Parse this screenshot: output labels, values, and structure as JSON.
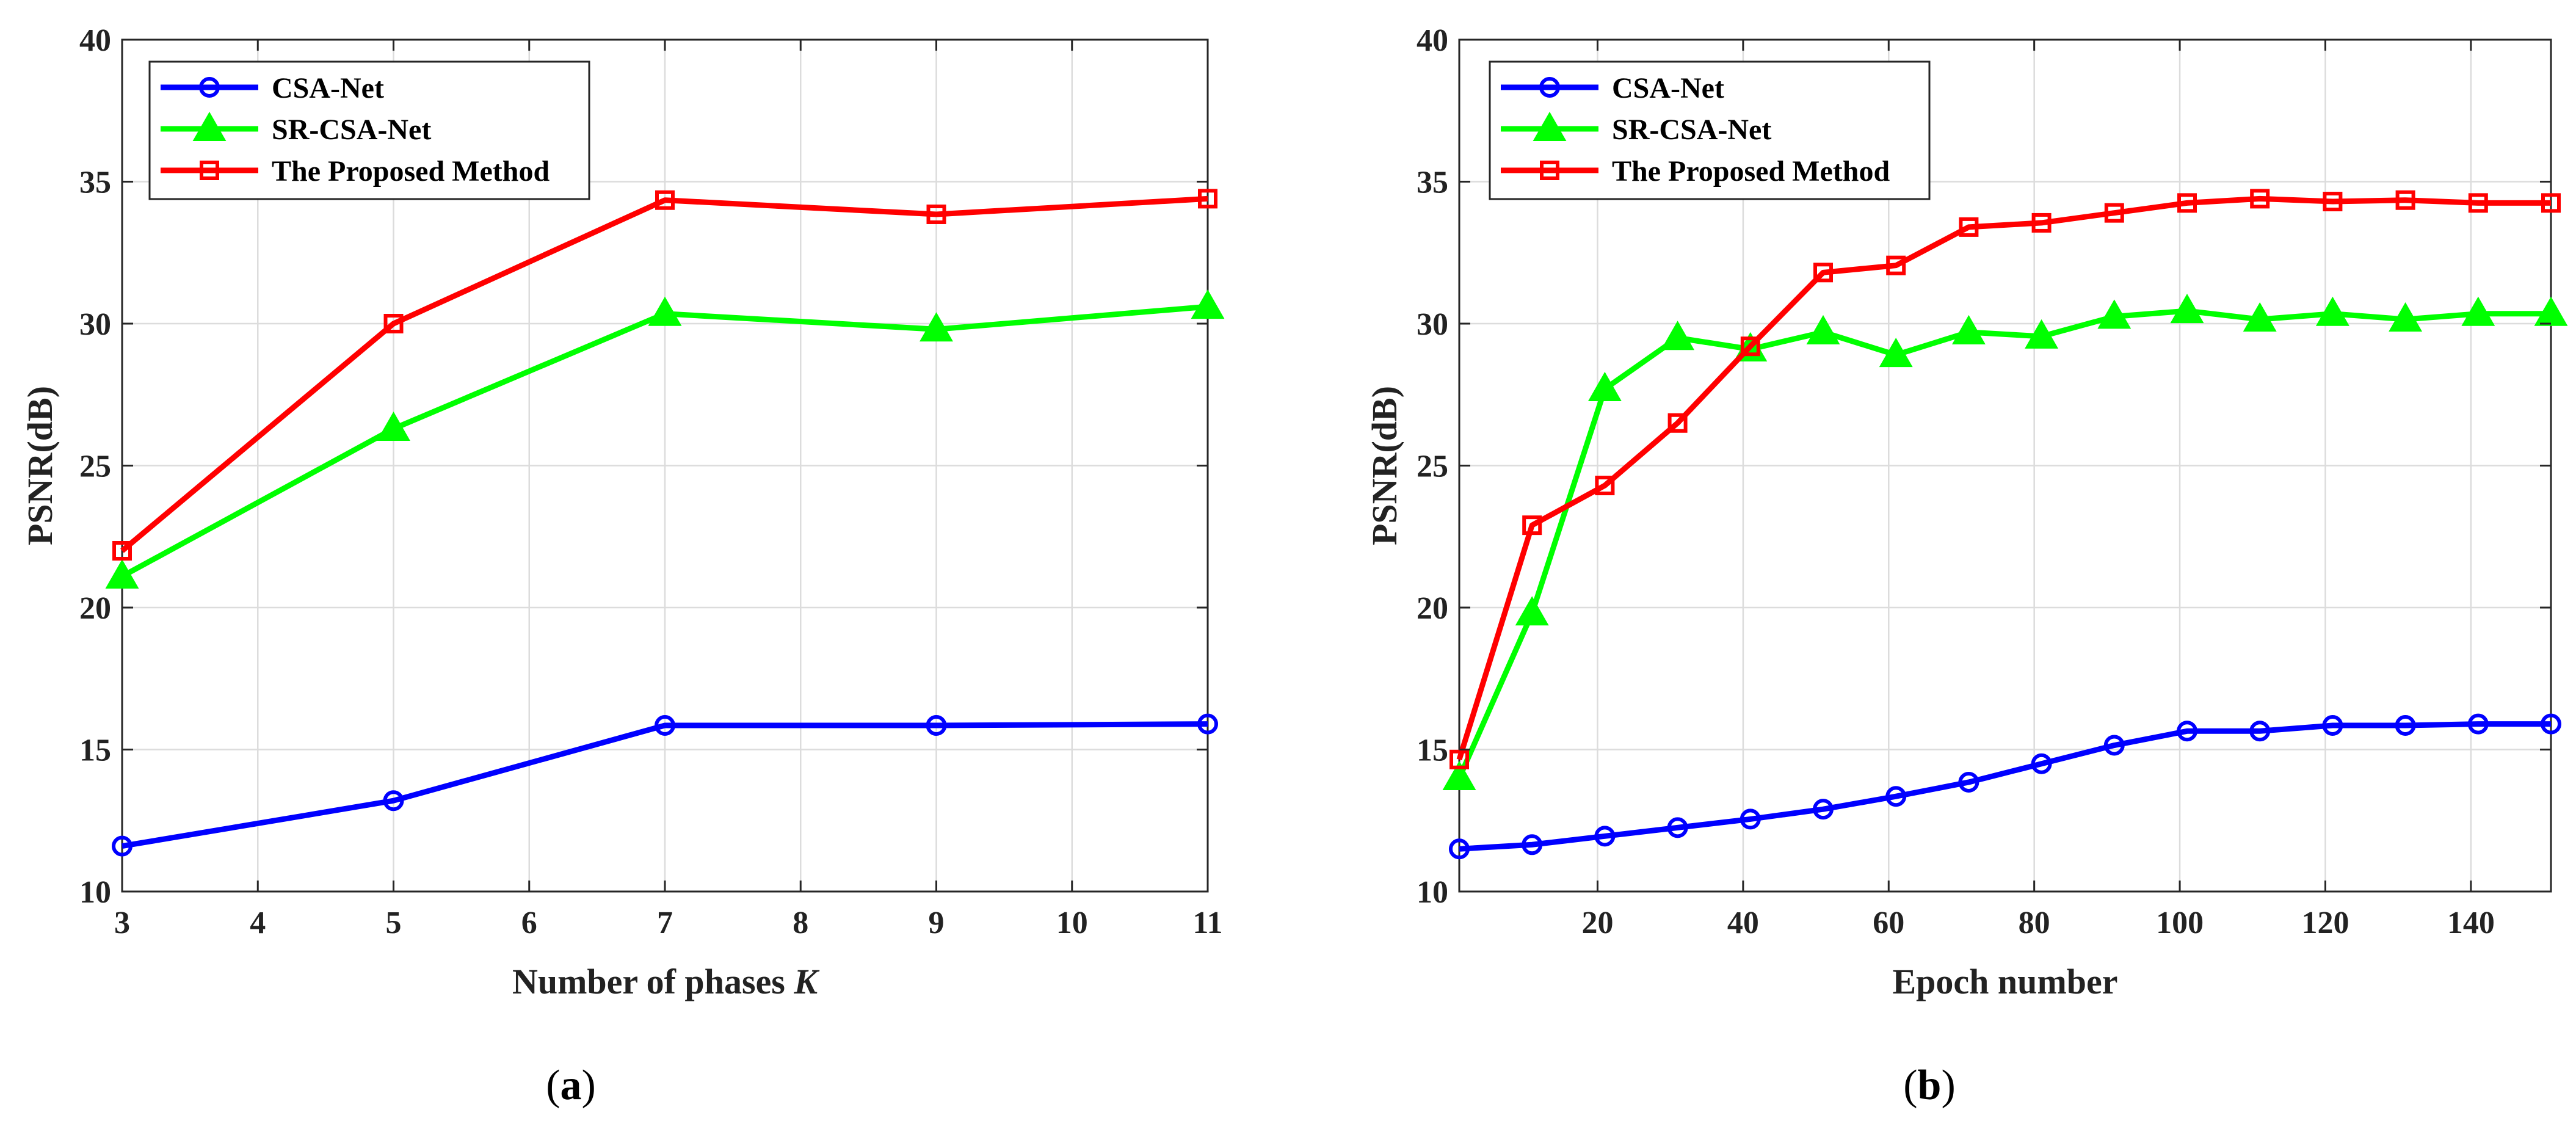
{
  "chart_data": [
    {
      "type": "line",
      "caption_open": "(",
      "caption_letter": "a",
      "caption_close": ")",
      "title": "",
      "xlabel": "Number of phases ",
      "xlabel_var": "K",
      "ylabel": "PSNR(dB)",
      "xlim": [
        3,
        11
      ],
      "ylim": [
        10,
        40
      ],
      "xticks": [
        3,
        4,
        5,
        6,
        7,
        8,
        9,
        10,
        11
      ],
      "yticks": [
        10,
        15,
        20,
        25,
        30,
        35,
        40
      ],
      "grid": true,
      "legend_position": "top-left",
      "series": [
        {
          "name": "CSA-Net",
          "color": "#0000FF",
          "marker": "circle",
          "x": [
            3,
            5,
            7,
            9,
            11
          ],
          "values": [
            11.6,
            13.2,
            15.85,
            15.85,
            15.9
          ]
        },
        {
          "name": "SR-CSA-Net",
          "color": "#00FF00",
          "marker": "triangle",
          "x": [
            3,
            5,
            7,
            9,
            11
          ],
          "values": [
            21.1,
            26.3,
            30.35,
            29.8,
            30.6
          ]
        },
        {
          "name": "The Proposed Method",
          "color": "#FF0000",
          "marker": "square",
          "x": [
            3,
            5,
            7,
            9,
            11
          ],
          "values": [
            22.0,
            30.0,
            34.35,
            33.85,
            34.4
          ]
        }
      ]
    },
    {
      "type": "line",
      "caption_open": "(",
      "caption_letter": "b",
      "caption_close": ")",
      "title": "",
      "xlabel": "Epoch number",
      "xlabel_var": "",
      "ylabel": "PSNR(dB)",
      "xlim": [
        1,
        151
      ],
      "ylim": [
        10,
        40
      ],
      "xticks": [
        20,
        40,
        60,
        80,
        100,
        120,
        140
      ],
      "yticks": [
        10,
        15,
        20,
        25,
        30,
        35,
        40
      ],
      "grid": true,
      "legend_position": "top-left",
      "series": [
        {
          "name": "CSA-Net",
          "color": "#0000FF",
          "marker": "circle",
          "x": [
            1,
            11,
            21,
            31,
            41,
            51,
            61,
            71,
            81,
            91,
            101,
            111,
            121,
            131,
            141,
            151
          ],
          "values": [
            11.5,
            11.65,
            11.95,
            12.25,
            12.55,
            12.9,
            13.35,
            13.85,
            14.5,
            15.15,
            15.65,
            15.65,
            15.85,
            15.85,
            15.9,
            15.9
          ]
        },
        {
          "name": "SR-CSA-Net",
          "color": "#00FF00",
          "marker": "triangle",
          "x": [
            1,
            11,
            21,
            31,
            41,
            51,
            61,
            71,
            81,
            91,
            101,
            111,
            121,
            131,
            141,
            151
          ],
          "values": [
            14.0,
            19.8,
            27.7,
            29.5,
            29.1,
            29.7,
            28.9,
            29.7,
            29.55,
            30.25,
            30.45,
            30.15,
            30.35,
            30.15,
            30.35,
            30.35
          ]
        },
        {
          "name": "The Proposed Method",
          "color": "#FF0000",
          "marker": "square",
          "x": [
            1,
            11,
            21,
            31,
            41,
            51,
            61,
            71,
            81,
            91,
            101,
            111,
            121,
            131,
            141,
            151
          ],
          "values": [
            14.65,
            22.9,
            24.3,
            26.5,
            29.2,
            31.8,
            32.05,
            33.4,
            33.55,
            33.9,
            34.25,
            34.4,
            34.3,
            34.35,
            34.25,
            34.25
          ]
        }
      ]
    }
  ]
}
